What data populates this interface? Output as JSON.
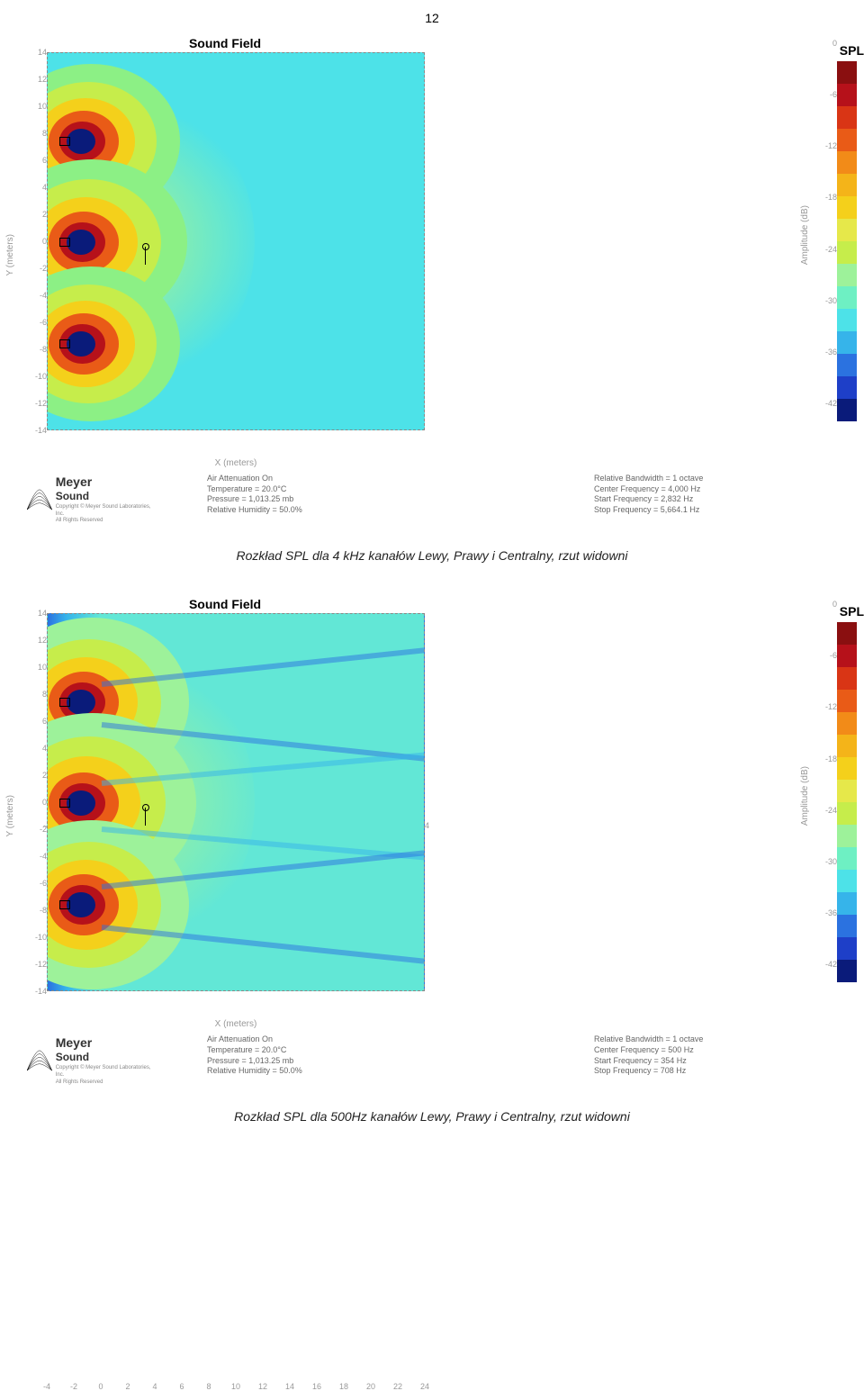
{
  "page_number": "12",
  "figure1": {
    "title": "Sound Field",
    "xlabel": "X (meters)",
    "ylabel": "Y (meters)",
    "x_ticks": [
      -4,
      -2,
      0,
      2,
      4,
      6,
      8,
      10,
      12,
      14,
      16,
      18,
      20,
      22,
      24
    ],
    "y_ticks": [
      14,
      12,
      10,
      8,
      6,
      4,
      2,
      0,
      -2,
      -4,
      -6,
      -8,
      -10,
      -12,
      -14
    ],
    "xlim": [
      -4,
      24
    ],
    "ylim": [
      -14,
      14
    ],
    "background_color": "#4de2e8",
    "left_edge_gradient": [
      "#0a1b7a",
      "#1e3fc8",
      "#2b72e0",
      "#36b4ea",
      "#4de2e8"
    ],
    "sources": [
      {
        "cx_data": -2.2,
        "cy_data": 7.5,
        "layers": [
          {
            "r": 14,
            "color": "#0a1b7a"
          },
          {
            "r": 22,
            "color": "#b6111a"
          },
          {
            "r": 34,
            "color": "#e95b17"
          },
          {
            "r": 48,
            "color": "#f4d01b"
          },
          {
            "r": 66,
            "color": "#c6ed4b"
          },
          {
            "r": 86,
            "color": "#8cf085"
          }
        ]
      },
      {
        "cx_data": -2.2,
        "cy_data": 0,
        "layers": [
          {
            "r": 14,
            "color": "#0a1b7a"
          },
          {
            "r": 22,
            "color": "#b6111a"
          },
          {
            "r": 34,
            "color": "#e95b17"
          },
          {
            "r": 50,
            "color": "#f4d01b"
          },
          {
            "r": 70,
            "color": "#c6ed4b"
          },
          {
            "r": 92,
            "color": "#8cf085"
          }
        ]
      },
      {
        "cx_data": -2.2,
        "cy_data": -7.5,
        "layers": [
          {
            "r": 14,
            "color": "#0a1b7a"
          },
          {
            "r": 22,
            "color": "#b6111a"
          },
          {
            "r": 34,
            "color": "#e95b17"
          },
          {
            "r": 48,
            "color": "#f4d01b"
          },
          {
            "r": 66,
            "color": "#c6ed4b"
          },
          {
            "r": 86,
            "color": "#8cf085"
          }
        ]
      }
    ],
    "mic_marker": {
      "x_data": 3.2,
      "y_data": -0.3
    },
    "footer_left": [
      "Air Attenuation On",
      "Temperature = 20.0°C",
      "Pressure = 1,013.25 mb",
      "Relative Humidity = 50.0%"
    ],
    "footer_right": [
      "Relative Bandwidth = 1 octave",
      "Center Frequency = 4,000 Hz",
      "Start Frequency = 2,832 Hz",
      "Stop Frequency = 5,664.1 Hz"
    ],
    "caption": "Rozkład SPL dla 4 kHz kanałów Lewy, Prawy i Centralny, rzut widowni"
  },
  "figure2": {
    "title": "Sound Field",
    "xlabel": "X (meters)",
    "ylabel": "Y (meters)",
    "x_ticks": [
      -4,
      -2,
      0,
      2,
      4,
      6,
      8,
      10,
      12,
      14,
      16,
      18,
      20,
      22,
      24
    ],
    "y_ticks": [
      14,
      12,
      10,
      8,
      6,
      4,
      2,
      0,
      -2,
      -4,
      -6,
      -8,
      -10,
      -12,
      -14
    ],
    "xlim": [
      -4,
      24
    ],
    "ylim": [
      -14,
      14
    ],
    "background_color": "#62e7d6",
    "sources": [
      {
        "cx_data": -2.2,
        "cy_data": 7.5,
        "layers": [
          {
            "r": 14,
            "color": "#0a1b7a"
          },
          {
            "r": 22,
            "color": "#b6111a"
          },
          {
            "r": 34,
            "color": "#e95b17"
          },
          {
            "r": 50,
            "color": "#f4d01b"
          },
          {
            "r": 70,
            "color": "#c6ed4b"
          },
          {
            "r": 94,
            "color": "#9df29a"
          }
        ]
      },
      {
        "cx_data": -2.2,
        "cy_data": 0,
        "layers": [
          {
            "r": 14,
            "color": "#0a1b7a"
          },
          {
            "r": 22,
            "color": "#b6111a"
          },
          {
            "r": 34,
            "color": "#e95b17"
          },
          {
            "r": 52,
            "color": "#f4d01b"
          },
          {
            "r": 74,
            "color": "#c6ed4b"
          },
          {
            "r": 100,
            "color": "#9df29a"
          }
        ]
      },
      {
        "cx_data": -2.2,
        "cy_data": -7.5,
        "layers": [
          {
            "r": 14,
            "color": "#0a1b7a"
          },
          {
            "r": 22,
            "color": "#b6111a"
          },
          {
            "r": 34,
            "color": "#e95b17"
          },
          {
            "r": 50,
            "color": "#f4d01b"
          },
          {
            "r": 70,
            "color": "#c6ed4b"
          },
          {
            "r": 94,
            "color": "#9df29a"
          }
        ]
      }
    ],
    "rays": [
      {
        "y_data": 9.0,
        "angle_deg": -6,
        "color": "#2b72e0",
        "len": 360
      },
      {
        "y_data": 6.0,
        "angle_deg": 6,
        "color": "#2b72e0",
        "len": 360
      },
      {
        "y_data": 1.7,
        "angle_deg": -5,
        "color": "#36b4ea",
        "len": 360
      },
      {
        "y_data": -1.7,
        "angle_deg": 5,
        "color": "#36b4ea",
        "len": 360
      },
      {
        "y_data": -6.0,
        "angle_deg": -6,
        "color": "#2b72e0",
        "len": 360
      },
      {
        "y_data": -9.0,
        "angle_deg": 6,
        "color": "#2b72e0",
        "len": 360
      }
    ],
    "mic_marker": {
      "x_data": 3.2,
      "y_data": -0.3
    },
    "footer_left": [
      "Air Attenuation On",
      "Temperature = 20.0°C",
      "Pressure = 1,013.25 mb",
      "Relative Humidity = 50.0%"
    ],
    "footer_right": [
      "Relative Bandwidth = 1 octave",
      "Center Frequency = 500 Hz",
      "Start Frequency = 354 Hz",
      "Stop Frequency = 708 Hz"
    ],
    "caption": "Rozkład SPL dla 500Hz kanałów Lewy, Prawy i Centralny, rzut widowni"
  },
  "spl_legend": {
    "title": "SPL",
    "axis_label": "Amplitude (dB)",
    "ticks": [
      0,
      -6,
      -12,
      -18,
      -24,
      -30,
      -36,
      -42
    ],
    "colors": [
      "#8a0f10",
      "#b6111a",
      "#d93515",
      "#e95b17",
      "#f28b18",
      "#f4b419",
      "#f4d01b",
      "#e6e84a",
      "#c6ed4b",
      "#9df29a",
      "#6ef0c3",
      "#4de2e8",
      "#36b4ea",
      "#2b72e0",
      "#1e3fc8",
      "#0a1b7a"
    ]
  },
  "meyer": {
    "name": "Meyer",
    "sub": "Sound",
    "copyright": "Copyright © Meyer Sound Laboratories, Inc.",
    "rights": "All Rights Reserved"
  }
}
